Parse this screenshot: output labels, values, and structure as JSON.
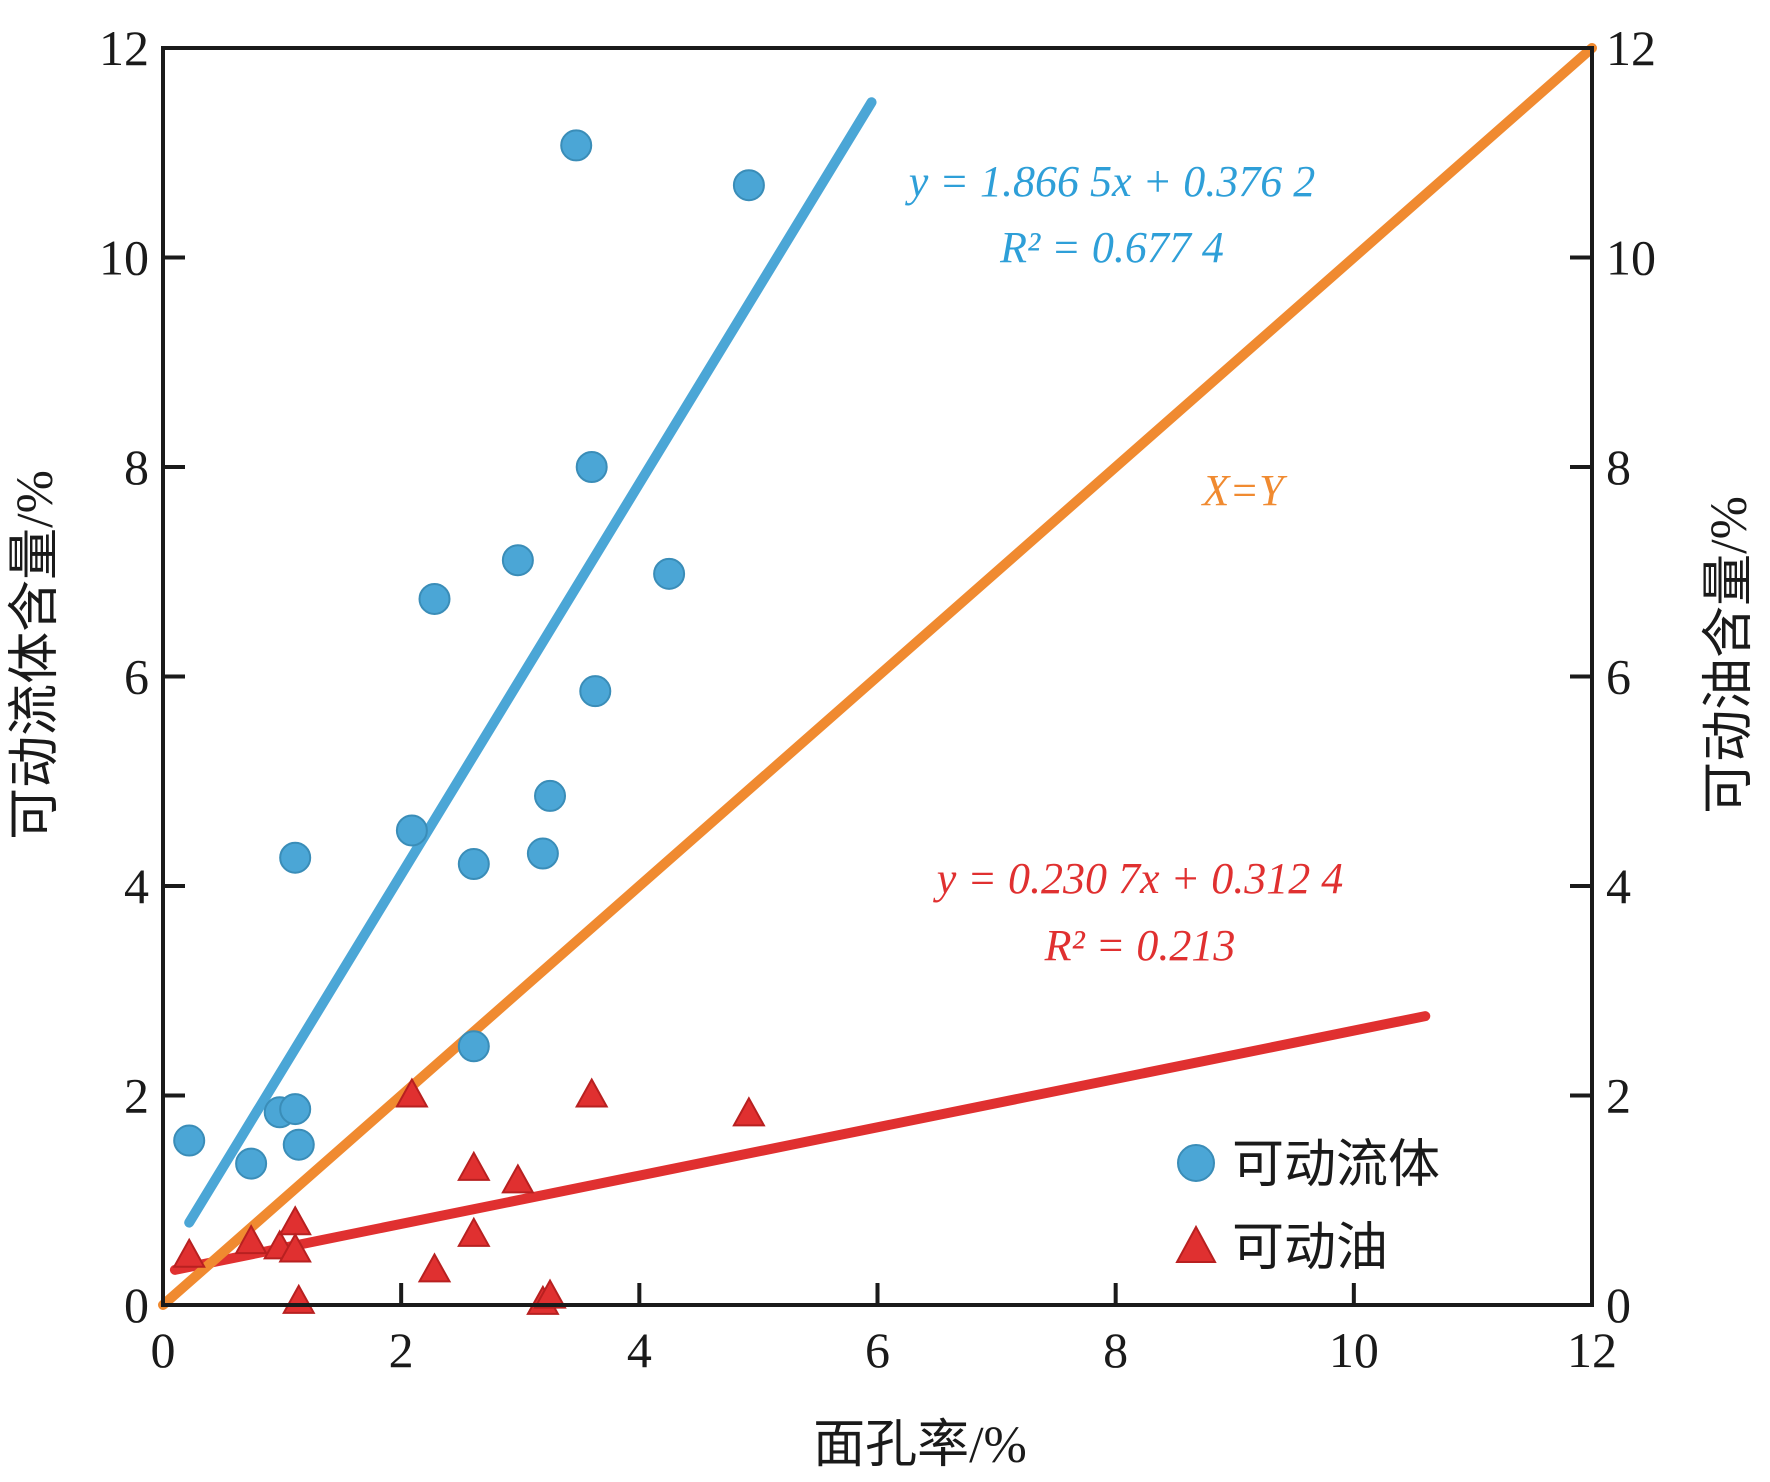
{
  "chart_data": {
    "type": "scatter",
    "xlabel": "面孔率/%",
    "ylabel_left": "可动流体含量/%",
    "ylabel_right": "可动油含量/%",
    "xlim": [
      0,
      12
    ],
    "ylim": [
      0,
      12
    ],
    "xticks": [
      "0",
      "2",
      "4",
      "6",
      "8",
      "10",
      "12"
    ],
    "yticks": [
      "0",
      "2",
      "4",
      "6",
      "8",
      "10",
      "12"
    ],
    "grid": false,
    "legend_position": "bottom-right",
    "series": [
      {
        "name": "可动流体",
        "marker": "circle",
        "color": "#4BA6D6",
        "points": [
          [
            0.22,
            1.57
          ],
          [
            0.74,
            1.35
          ],
          [
            0.98,
            1.84
          ],
          [
            1.11,
            1.87
          ],
          [
            1.14,
            1.53
          ],
          [
            1.11,
            4.27
          ],
          [
            2.09,
            4.53
          ],
          [
            2.28,
            6.74
          ],
          [
            2.61,
            4.21
          ],
          [
            2.61,
            2.47
          ],
          [
            2.98,
            7.11
          ],
          [
            3.19,
            4.31
          ],
          [
            3.25,
            4.86
          ],
          [
            3.47,
            11.07
          ],
          [
            3.6,
            8.0
          ],
          [
            3.63,
            5.86
          ],
          [
            4.25,
            6.98
          ],
          [
            4.92,
            10.69
          ]
        ]
      },
      {
        "name": "可动油",
        "marker": "triangle",
        "color": "#E03030",
        "points": [
          [
            0.22,
            0.47
          ],
          [
            0.74,
            0.6
          ],
          [
            0.98,
            0.55
          ],
          [
            1.11,
            0.78
          ],
          [
            1.11,
            0.52
          ],
          [
            1.14,
            0.03
          ],
          [
            2.09,
            2.0
          ],
          [
            2.28,
            0.33
          ],
          [
            2.61,
            1.3
          ],
          [
            2.61,
            0.67
          ],
          [
            2.98,
            1.18
          ],
          [
            3.19,
            0.02
          ],
          [
            3.25,
            0.08
          ],
          [
            3.6,
            2.0
          ],
          [
            4.92,
            1.82
          ]
        ]
      }
    ],
    "lines": [
      {
        "color": "#4BA6D6",
        "slope": 1.8665,
        "intercept": 0.3762,
        "x_range": [
          0.22,
          5.95
        ]
      },
      {
        "color": "#E03030",
        "slope": 0.2307,
        "intercept": 0.3124,
        "x_range": [
          0.1,
          10.6
        ]
      },
      {
        "color": "#F08A30",
        "slope": 1,
        "intercept": 0,
        "x_range": [
          0,
          12
        ]
      }
    ],
    "annotations": {
      "blue_eq_1": "y = 1.866 5x + 0.376 2",
      "blue_eq_2": "R² = 0.677 4",
      "orange_label": "X=Y",
      "red_eq_1": "y = 0.230 7x + 0.312 4",
      "red_eq_2": "R² = 0.213"
    }
  }
}
